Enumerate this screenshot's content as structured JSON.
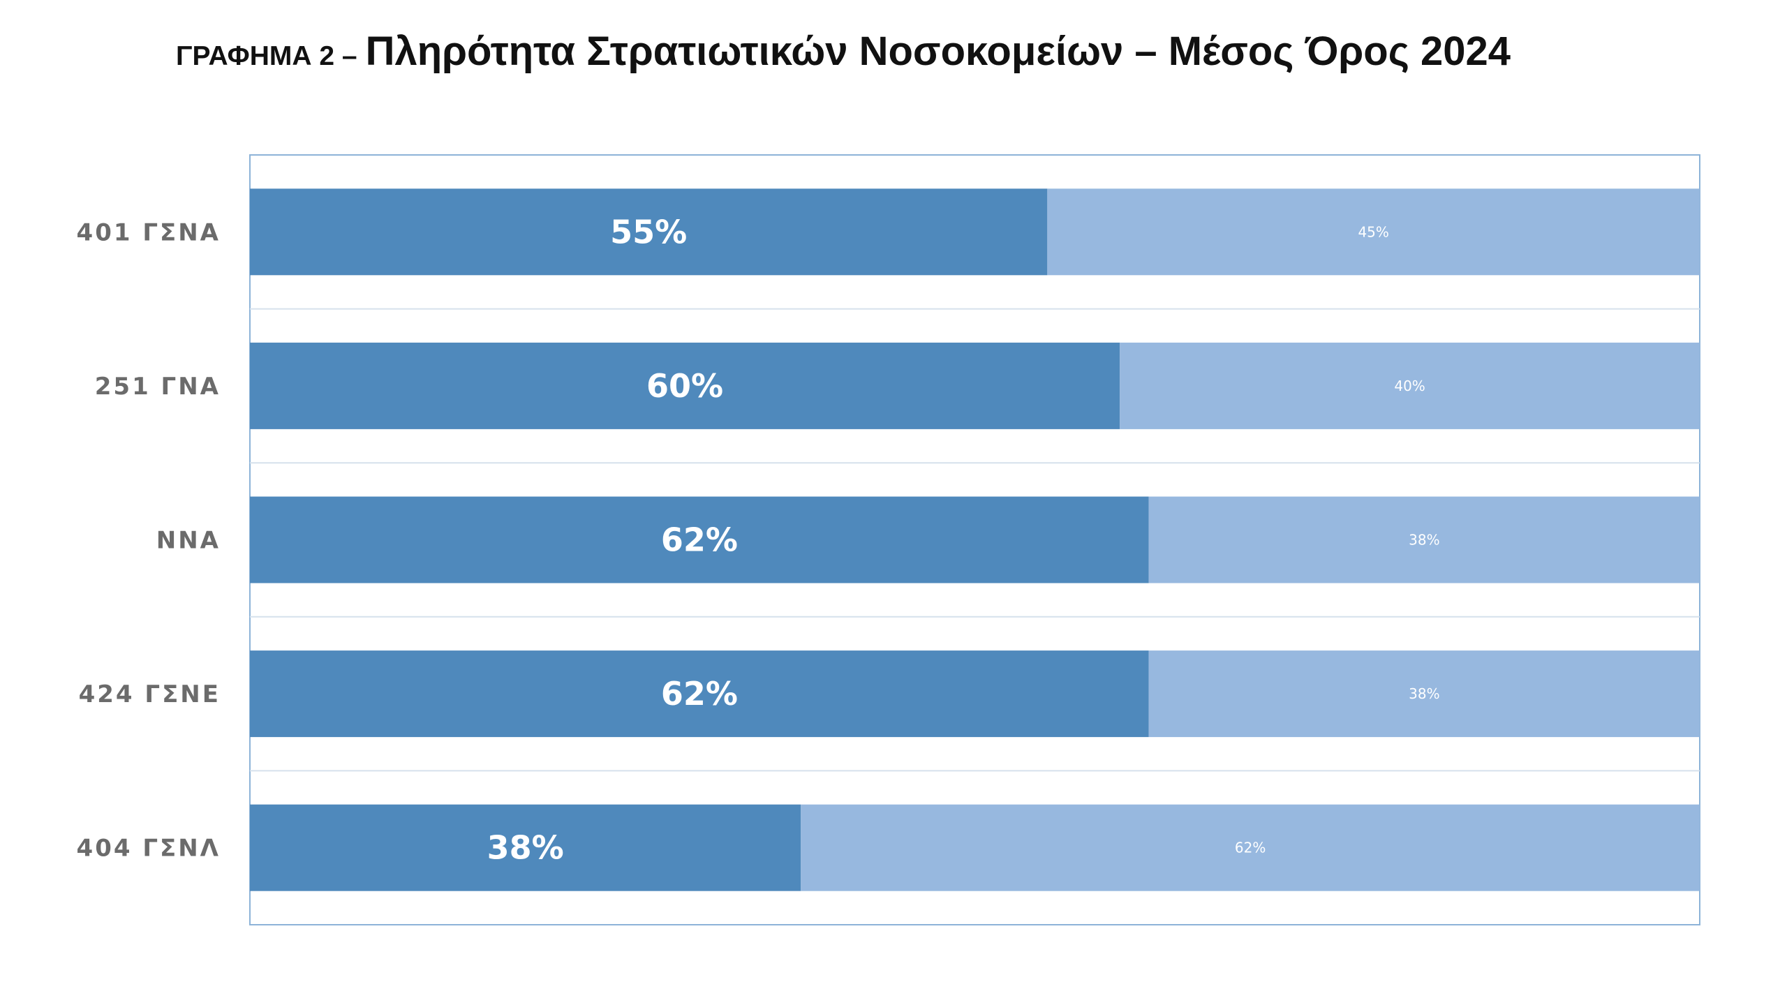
{
  "page": {
    "title_prefix": "ΓΡΑΦΗΜΑ 2 –",
    "title_main": "Πληρότητα Στρατιωτικών Νοσοκομείων – Μέσος Όρος 2024"
  },
  "colors": {
    "primary_series": "#4f89bc",
    "secondary_series": "#97b8df",
    "frame": "#8db3d8",
    "separator": "#d6e1ec"
  },
  "chart_data": {
    "type": "bar",
    "orientation": "horizontal",
    "stacked": "percent",
    "title": "Πληρότητα Στρατιωτικών Νοσοκομείων – Μέσος Όρος 2024",
    "categories": [
      "401 ΓΣΝΑ",
      "251 ΓΝΑ",
      "ΝΝΑ",
      "424 ΓΣΝΕ",
      "404 ΓΣΝΛ"
    ],
    "series": [
      {
        "values": [
          55,
          60,
          62,
          62,
          38
        ],
        "labels": [
          "55%",
          "60%",
          "62%",
          "62%",
          "38%"
        ]
      },
      {
        "values": [
          45,
          40,
          38,
          38,
          62
        ],
        "labels": [
          "45%",
          "40%",
          "38%",
          "38%",
          "62%"
        ]
      }
    ],
    "xlim": [
      0,
      100
    ],
    "xlabel": "",
    "ylabel": "",
    "legend": "none",
    "grid": false
  }
}
